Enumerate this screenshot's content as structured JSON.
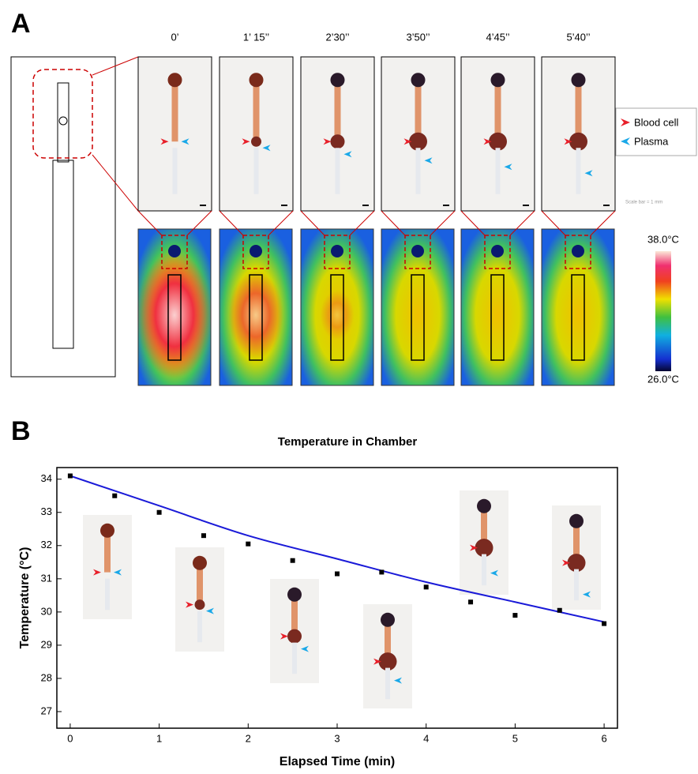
{
  "panel_a": {
    "label": "A",
    "time_labels": [
      "0’",
      "1’ 15’’",
      "2’30’’",
      "3’50’’",
      "4’45’’",
      "5’40’’"
    ],
    "legend": [
      "Blood cell",
      "Plasma"
    ],
    "scale_bar": "Scale bar = 1 mm",
    "colorbar": {
      "max_label": "38.0°C",
      "min_label": "26.0°C"
    }
  },
  "chart_data": {
    "type": "scatter",
    "panel_label": "B",
    "title": "Temperature in Chamber",
    "x_label": "Elapsed Time (min)",
    "y_label": "Temperature (°C)",
    "x": [
      0,
      0.5,
      1,
      1.5,
      2,
      2.5,
      3,
      3.5,
      4,
      4.5,
      5,
      5.5,
      6
    ],
    "values": [
      34.1,
      33.5,
      33.0,
      32.3,
      32.05,
      31.55,
      31.15,
      31.2,
      30.75,
      30.3,
      29.9,
      30.05,
      29.65
    ],
    "color": "#000000",
    "fit": {
      "x": [
        0,
        1,
        2,
        3,
        4,
        5,
        6
      ],
      "values": [
        34.1,
        33.2,
        32.3,
        31.6,
        30.9,
        30.3,
        29.7
      ],
      "color": "#1a1ad8"
    },
    "xlim": [
      -0.15,
      6.15
    ],
    "ylim": [
      26.5,
      34.35
    ],
    "xticks": [
      0,
      1,
      2,
      3,
      4,
      5,
      6
    ],
    "yticks": [
      27,
      28,
      29,
      30,
      31,
      32,
      33,
      34
    ]
  }
}
